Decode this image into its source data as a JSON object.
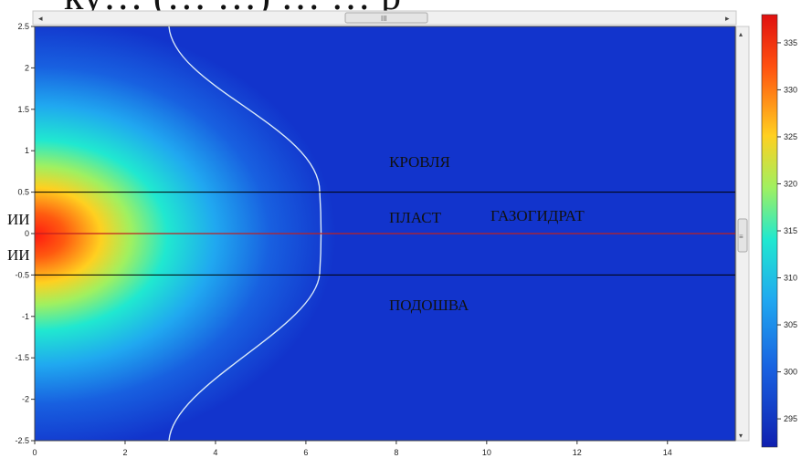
{
  "chart_data": {
    "type": "heatmap",
    "title_fragment": "ку… (… …) … … р",
    "x_ticks": [
      "0",
      "2",
      "4",
      "6",
      "8",
      "10",
      "12",
      "14"
    ],
    "y_ticks": [
      "2.5",
      "2",
      "1.5",
      "1",
      "0.5",
      "0",
      "-0.5",
      "-1",
      "-1.5",
      "-2",
      "-2.5"
    ],
    "xlim": [
      0,
      15.5
    ],
    "ylim": [
      -2.5,
      2.5
    ],
    "colorbar": {
      "ticks": [
        "335",
        "330",
        "325",
        "320",
        "315",
        "310",
        "305",
        "300",
        "295"
      ],
      "range": [
        292,
        338
      ]
    },
    "layer_lines_y": [
      0.5,
      0,
      -0.5
    ],
    "region_labels": [
      "КРОВЛЯ",
      "ПЛАСТ",
      "ГАЗОГИДРАТ",
      "ПОДОШВА"
    ],
    "source_labels": [
      "ИИ",
      "ИИ"
    ],
    "colors": {
      "field_low": "#1030c8",
      "field_high": "#e01010",
      "layer_line": "#000000",
      "center_line": "#c02020",
      "contour": "#d8e8f8"
    }
  },
  "scrollbar": {
    "thumb_glyph": "III",
    "vthumb_glyph": "≡"
  }
}
